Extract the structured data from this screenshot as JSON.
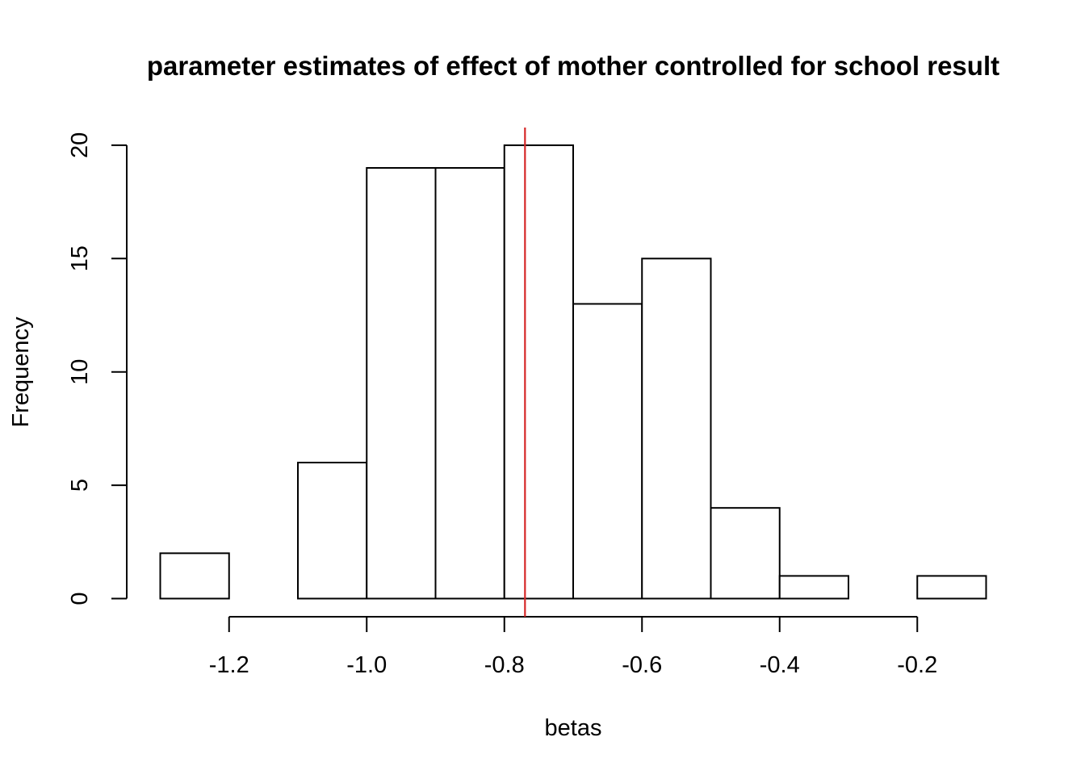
{
  "chart_data": {
    "type": "histogram",
    "title": "parameter estimates of effect of mother controlled for school result",
    "xlabel": "betas",
    "ylabel": "Frequency",
    "bins": [
      {
        "x0": -1.3,
        "x1": -1.2,
        "count": 2
      },
      {
        "x0": -1.2,
        "x1": -1.1,
        "count": 0
      },
      {
        "x0": -1.1,
        "x1": -1.0,
        "count": 6
      },
      {
        "x0": -1.0,
        "x1": -0.9,
        "count": 19
      },
      {
        "x0": -0.9,
        "x1": -0.8,
        "count": 19
      },
      {
        "x0": -0.8,
        "x1": -0.7,
        "count": 20
      },
      {
        "x0": -0.7,
        "x1": -0.6,
        "count": 13
      },
      {
        "x0": -0.6,
        "x1": -0.5,
        "count": 15
      },
      {
        "x0": -0.5,
        "x1": -0.4,
        "count": 4
      },
      {
        "x0": -0.4,
        "x1": -0.3,
        "count": 1
      },
      {
        "x0": -0.3,
        "x1": -0.2,
        "count": 0
      },
      {
        "x0": -0.2,
        "x1": -0.1,
        "count": 1
      }
    ],
    "xlim": [
      -1.3,
      -0.1
    ],
    "ylim": [
      0,
      20
    ],
    "x_ticks": [
      -1.2,
      -1.0,
      -0.8,
      -0.6,
      -0.4,
      -0.2
    ],
    "x_tick_labels": [
      "-1.2",
      "-1.0",
      "-0.8",
      "-0.6",
      "-0.4",
      "-0.2"
    ],
    "y_ticks": [
      0,
      5,
      10,
      15,
      20
    ],
    "y_tick_labels": [
      "0",
      "5",
      "10",
      "15",
      "20"
    ],
    "reference_line": {
      "x": -0.77,
      "color": "#d62728"
    },
    "bar_fill": "#ffffff",
    "bar_stroke": "#000000",
    "grid": false,
    "legend": "none"
  }
}
